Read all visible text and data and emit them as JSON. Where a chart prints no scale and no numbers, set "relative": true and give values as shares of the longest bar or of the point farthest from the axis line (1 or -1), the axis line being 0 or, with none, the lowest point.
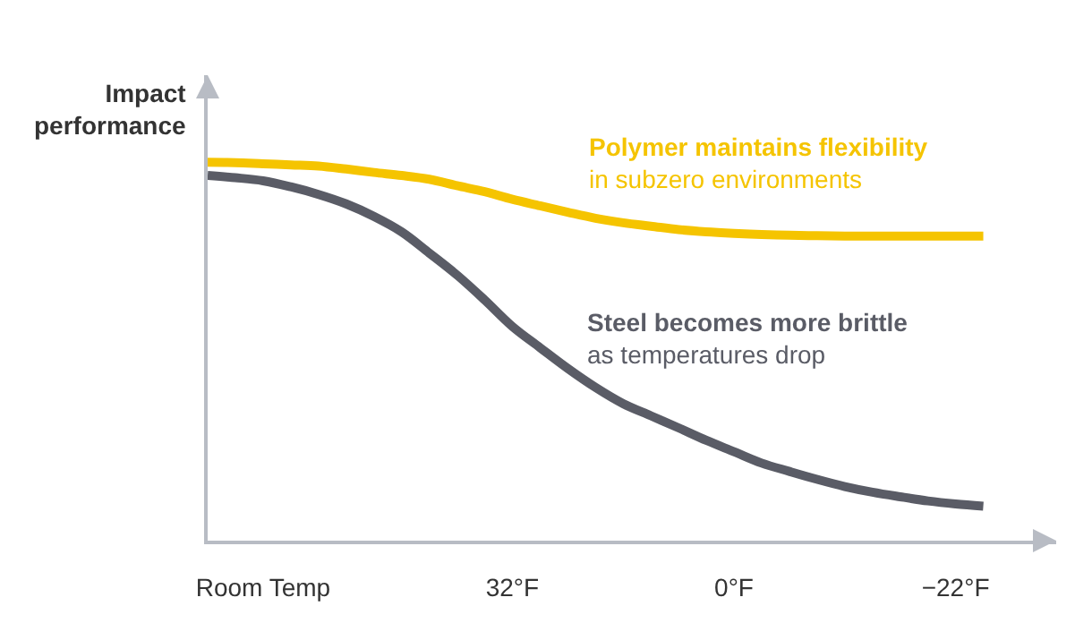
{
  "chart_data": {
    "type": "line",
    "relative": true,
    "ylabel": "Impact performance",
    "categories": [
      null,
      null,
      "Room Temp",
      null,
      null,
      null,
      null,
      null,
      null,
      null,
      null,
      "32°F",
      null,
      null,
      null,
      null,
      null,
      null,
      null,
      "0°F",
      null,
      null,
      null,
      null,
      null,
      null,
      null,
      "−22°F",
      null
    ],
    "series": [
      {
        "color": "#f5c400",
        "values": [
          1.0,
          0.999,
          0.996,
          0.993,
          0.99,
          0.982,
          0.973,
          0.965,
          0.955,
          0.938,
          0.922,
          0.902,
          0.885,
          0.868,
          0.852,
          0.84,
          0.831,
          0.822,
          0.816,
          0.812,
          0.809,
          0.807,
          0.806,
          0.805,
          0.805,
          0.805,
          0.805,
          0.805,
          0.805
        ]
      },
      {
        "color": "#5a5c66",
        "values": [
          0.965,
          0.959,
          0.951,
          0.935,
          0.915,
          0.89,
          0.857,
          0.816,
          0.76,
          0.702,
          0.636,
          0.566,
          0.51,
          0.455,
          0.405,
          0.362,
          0.33,
          0.298,
          0.265,
          0.235,
          0.205,
          0.183,
          0.162,
          0.143,
          0.128,
          0.116,
          0.105,
          0.097,
          0.091
        ]
      }
    ],
    "annotations": [
      "Polymer maintains flexibility\nin subzero environments",
      "Steel becomes more brittle\nas temperatures drop"
    ],
    "marker": "none",
    "line_style": "solid"
  }
}
